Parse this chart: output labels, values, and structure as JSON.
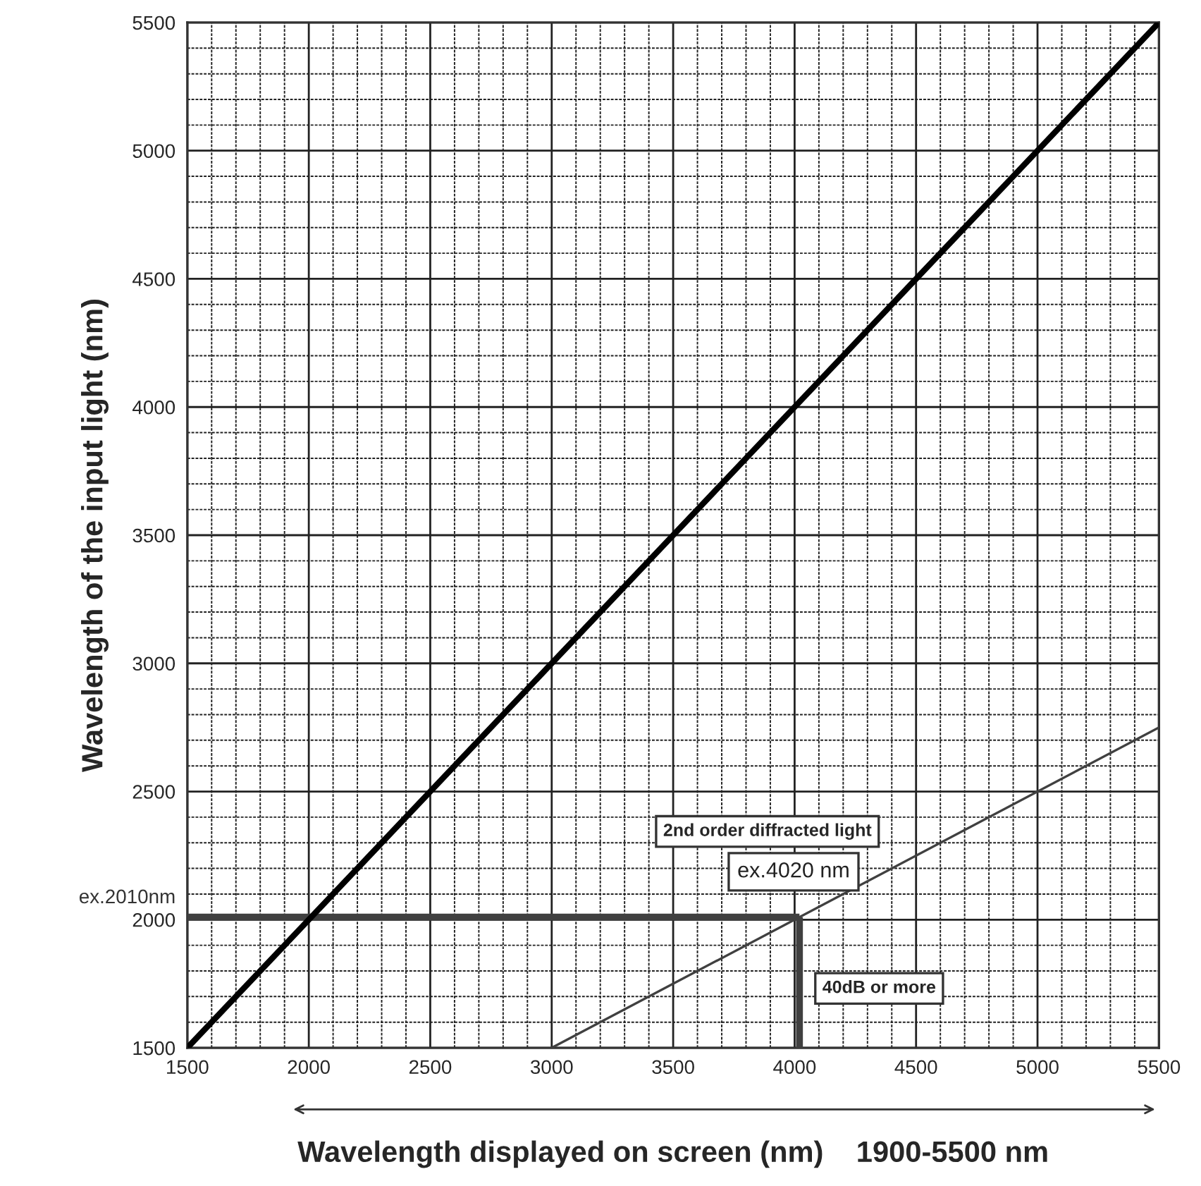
{
  "chart_data": {
    "type": "line",
    "xlabel": "Wavelength displayed on screen (nm)    1900-5500 nm",
    "ylabel": "Wavelength of the input light (nm)",
    "xlim": [
      1500,
      5500
    ],
    "ylim": [
      1500,
      5500
    ],
    "xticks": [
      1500,
      {
        "value": 1600,
        "label": null
      },
      {
        "value": 1700,
        "label": null
      },
      {
        "value": 1800,
        "label": null
      },
      {
        "value": 1900,
        "label": null
      },
      2000,
      {
        "value": 2100,
        "label": null
      },
      {
        "value": 2200,
        "label": null
      },
      {
        "value": 2300,
        "label": null
      },
      {
        "value": 2400,
        "label": null
      },
      2500,
      {
        "value": 2600,
        "label": null
      },
      {
        "value": 2700,
        "label": null
      },
      {
        "value": 2800,
        "label": null
      },
      {
        "value": 2900,
        "label": null
      },
      3000,
      {
        "value": 3100,
        "label": null
      },
      {
        "value": 3200,
        "label": null
      },
      {
        "value": 3300,
        "label": null
      },
      {
        "value": 3400,
        "label": null
      },
      3500,
      {
        "value": 3600,
        "label": null
      },
      {
        "value": 3700,
        "label": null
      },
      {
        "value": 3800,
        "label": null
      },
      {
        "value": 3900,
        "label": null
      },
      4000,
      {
        "value": 4100,
        "label": null
      },
      {
        "value": 4200,
        "label": null
      },
      {
        "value": 4300,
        "label": null
      },
      {
        "value": 4400,
        "label": null
      },
      4500,
      {
        "value": 4600,
        "label": null
      },
      {
        "value": 4700,
        "label": null
      },
      {
        "value": 4800,
        "label": null
      },
      {
        "value": 4900,
        "label": null
      },
      5000,
      {
        "value": 5100,
        "label": null
      },
      {
        "value": 5200,
        "label": null
      },
      {
        "value": 5300,
        "label": null
      },
      {
        "value": 5400,
        "label": null
      },
      5500
    ],
    "yticks": [
      1500,
      {
        "value": 1600,
        "label": null
      },
      {
        "value": 1700,
        "label": null
      },
      {
        "value": 1800,
        "label": null
      },
      {
        "value": 1900,
        "label": null
      },
      2000,
      {
        "value": 2100,
        "label": null
      },
      {
        "value": 2200,
        "label": null
      },
      {
        "value": 2300,
        "label": null
      },
      {
        "value": 2400,
        "label": null
      },
      2500,
      {
        "value": 2600,
        "label": null
      },
      {
        "value": 2700,
        "label": null
      },
      {
        "value": 2800,
        "label": null
      },
      {
        "value": 2900,
        "label": null
      },
      3000,
      {
        "value": 3100,
        "label": null
      },
      {
        "value": 3200,
        "label": null
      },
      {
        "value": 3300,
        "label": null
      },
      {
        "value": 3400,
        "label": null
      },
      3500,
      {
        "value": 3600,
        "label": null
      },
      {
        "value": 3700,
        "label": null
      },
      {
        "value": 3800,
        "label": null
      },
      {
        "value": 3900,
        "label": null
      },
      4000,
      {
        "value": 4100,
        "label": null
      },
      {
        "value": 4200,
        "label": null
      },
      {
        "value": 4300,
        "label": null
      },
      {
        "value": 4400,
        "label": null
      },
      4500,
      {
        "value": 4600,
        "label": null
      },
      {
        "value": 4700,
        "label": null
      },
      {
        "value": 4800,
        "label": null
      },
      {
        "value": 4900,
        "label": null
      },
      5000,
      {
        "value": 5100,
        "label": null
      },
      {
        "value": 5200,
        "label": null
      },
      {
        "value": 5300,
        "label": null
      },
      {
        "value": 5400,
        "label": null
      },
      5500
    ],
    "grid": true,
    "marker": "none",
    "line_style": "solid",
    "series": [
      {
        "color": "#000000",
        "x": [
          1500,
          5500
        ],
        "values": [
          1500,
          5500
        ]
      },
      {
        "color": "#404040",
        "x": [
          3000,
          5500
        ],
        "values": [
          1500,
          2750
        ]
      }
    ],
    "ref_lines": [
      {
        "axis": "y",
        "value": 2010,
        "label": "ex.2010nm",
        "color": "#404040"
      },
      {
        "axis": "x",
        "value": 4020,
        "label": "ex.4020 nm",
        "color": "#404040"
      }
    ],
    "annotations": [
      "2nd order diffracted light",
      "40dB or more"
    ]
  }
}
